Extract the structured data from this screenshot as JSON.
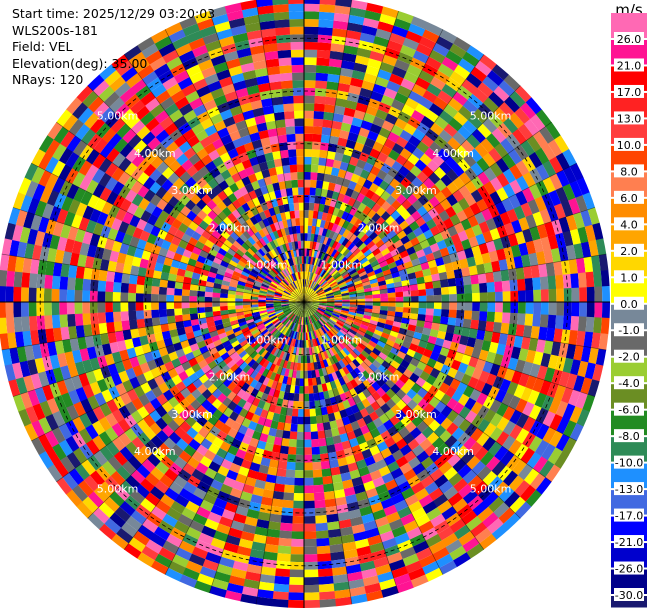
{
  "info": {
    "start_time": "Start time: 2025/12/29 03:20:03",
    "instrument": "WLS200s-181",
    "field": "Field: VEL",
    "elevation": "Elevation(deg): 35.00",
    "nrays": "NRays: 120"
  },
  "chart_data": {
    "type": "heatmap",
    "projection": "polar (PPI scan)",
    "field": "VEL",
    "n_rays": 120,
    "range_rings_km": [
      1.0,
      2.0,
      3.0,
      4.0,
      5.0
    ],
    "ring_labels": [
      "1.00km",
      "2.00km",
      "3.00km",
      "4.00km",
      "5.00km"
    ],
    "max_range_km": 5.8,
    "colorbar": {
      "unit_label": "m/s",
      "ticks": [
        "26.0",
        "21.0",
        "17.0",
        "13.0",
        "10.0",
        "8.0",
        "6.0",
        "4.0",
        "2.0",
        "1.0",
        "0.0",
        "-1.0",
        "-2.0",
        "-4.0",
        "-6.0",
        "-8.0",
        "-10.0",
        "-13.0",
        "-17.0",
        "-21.0",
        "-26.0",
        "-30.0"
      ],
      "colors": [
        "#ff69b4",
        "#ff1493",
        "#ff0000",
        "#ff2222",
        "#ff3c3c",
        "#ff4500",
        "#ff7f50",
        "#ff8c00",
        "#ffa500",
        "#ffd700",
        "#ffff00",
        "#778899",
        "#696969",
        "#9acd32",
        "#6b8e23",
        "#228b22",
        "#2e8b57",
        "#1e90ff",
        "#4169e1",
        "#0000ff",
        "#0000cd",
        "#00008b",
        "#191970"
      ]
    }
  }
}
